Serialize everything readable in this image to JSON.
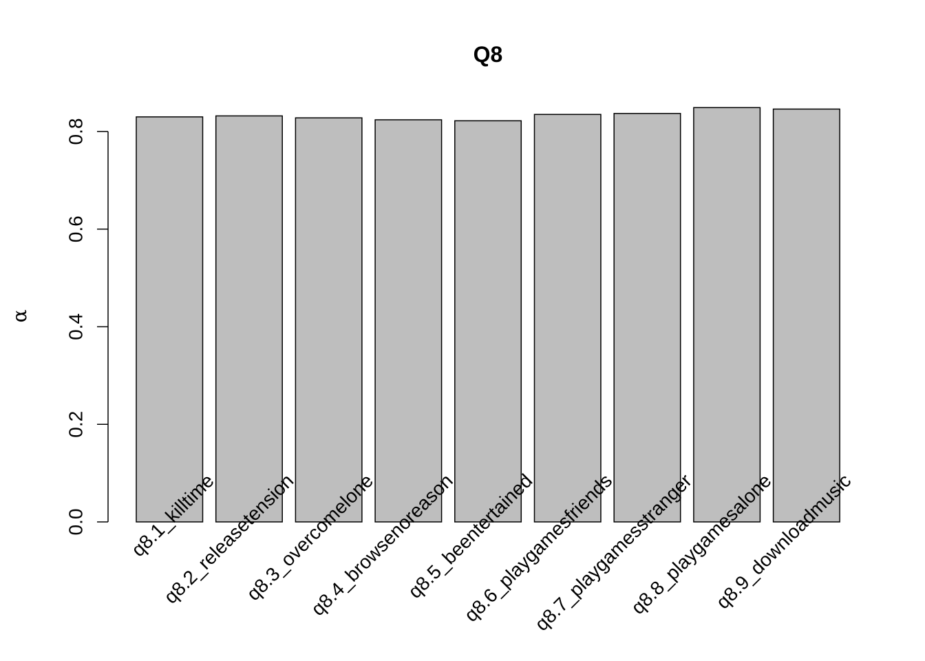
{
  "chart_data": {
    "type": "bar",
    "title": "Q8",
    "xlabel": "",
    "ylabel": "α",
    "categories": [
      "q8.1_killtime",
      "q8.2_releasetension",
      "q8.3_overcomelone",
      "q8.4_browsenoreason",
      "q8.5_beentertained",
      "q8.6_playgamesfriends",
      "q8.7_playgamesstranger",
      "q8.8_playgamesalone",
      "q8.9_downloadmusic"
    ],
    "values": [
      0.83,
      0.832,
      0.828,
      0.824,
      0.822,
      0.835,
      0.837,
      0.849,
      0.846
    ],
    "yticks": [
      0.0,
      0.2,
      0.4,
      0.6,
      0.8
    ],
    "ytick_labels": [
      "0.0",
      "0.2",
      "0.4",
      "0.6",
      "0.8"
    ],
    "ylim": [
      0,
      0.8491
    ],
    "grid": false,
    "legend": "none",
    "colors": {
      "bar_fill": "#bebebe",
      "bar_stroke": "#000000",
      "text": "#000000",
      "background": "#ffffff"
    }
  }
}
